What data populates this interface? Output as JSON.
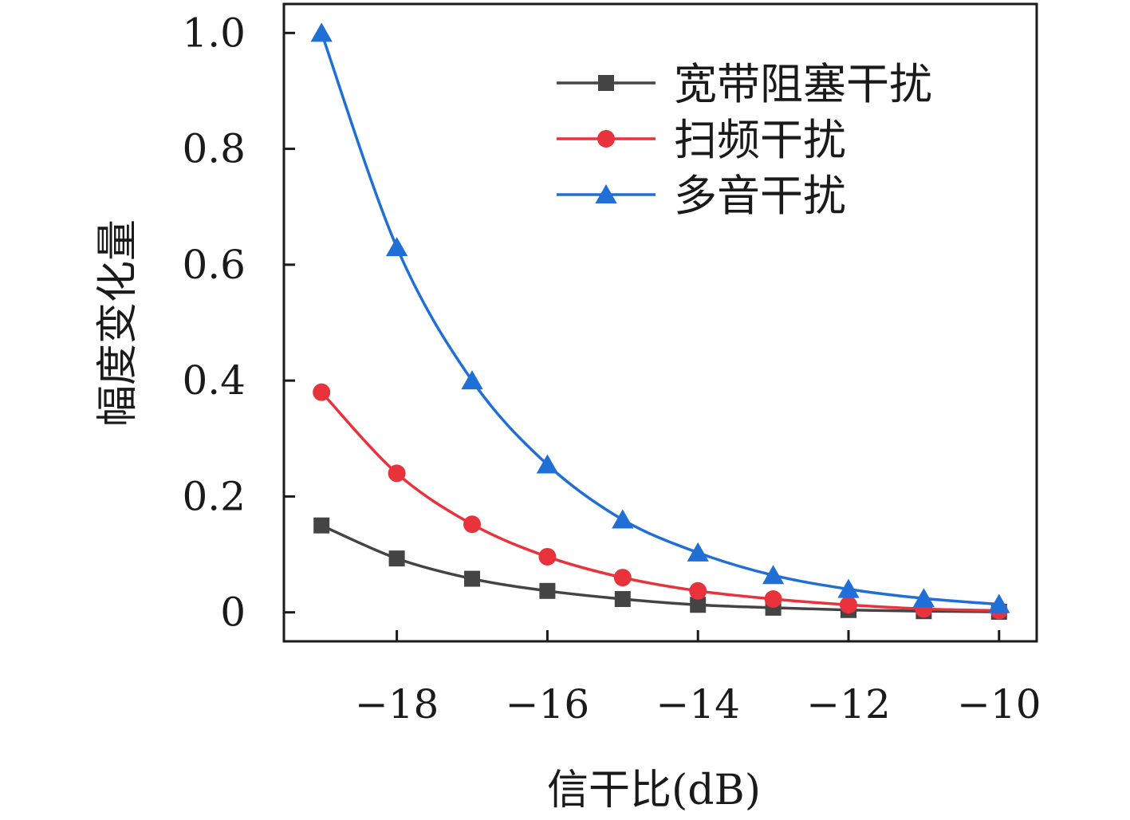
{
  "chart_data": {
    "type": "line",
    "title": "",
    "xlabel": "信干比(dB)",
    "ylabel": "幅度变化量",
    "xlim": [
      -19.5,
      -9.5
    ],
    "ylim": [
      -0.05,
      1.05
    ],
    "x_ticks": [
      -18,
      -16,
      -14,
      -12,
      -10
    ],
    "x_tick_labels": [
      "−18",
      "−16",
      "−14",
      "−12",
      "−10"
    ],
    "y_ticks": [
      0,
      0.2,
      0.4,
      0.6,
      0.8,
      1.0
    ],
    "y_tick_labels": [
      "0",
      "0.2",
      "0.4",
      "0.6",
      "0.8",
      "1.0"
    ],
    "grid": false,
    "legend_position": "top-right",
    "x": [
      -19,
      -18,
      -17,
      -16,
      -15,
      -14,
      -13,
      -12,
      -11,
      -10
    ],
    "series": [
      {
        "name": "宽带阻塞干扰",
        "marker": "square",
        "color": "#444444",
        "values": [
          0.15,
          0.093,
          0.058,
          0.037,
          0.023,
          0.013,
          0.008,
          0.004,
          0.002,
          0.001
        ]
      },
      {
        "name": "扫频干扰",
        "marker": "circle",
        "color": "#e8323c",
        "values": [
          0.38,
          0.24,
          0.152,
          0.096,
          0.06,
          0.037,
          0.023,
          0.013,
          0.006,
          0.003
        ]
      },
      {
        "name": "多音干扰",
        "marker": "triangle",
        "color": "#1f6fd6",
        "values": [
          1.0,
          0.63,
          0.4,
          0.255,
          0.16,
          0.103,
          0.064,
          0.04,
          0.024,
          0.014
        ]
      }
    ]
  }
}
